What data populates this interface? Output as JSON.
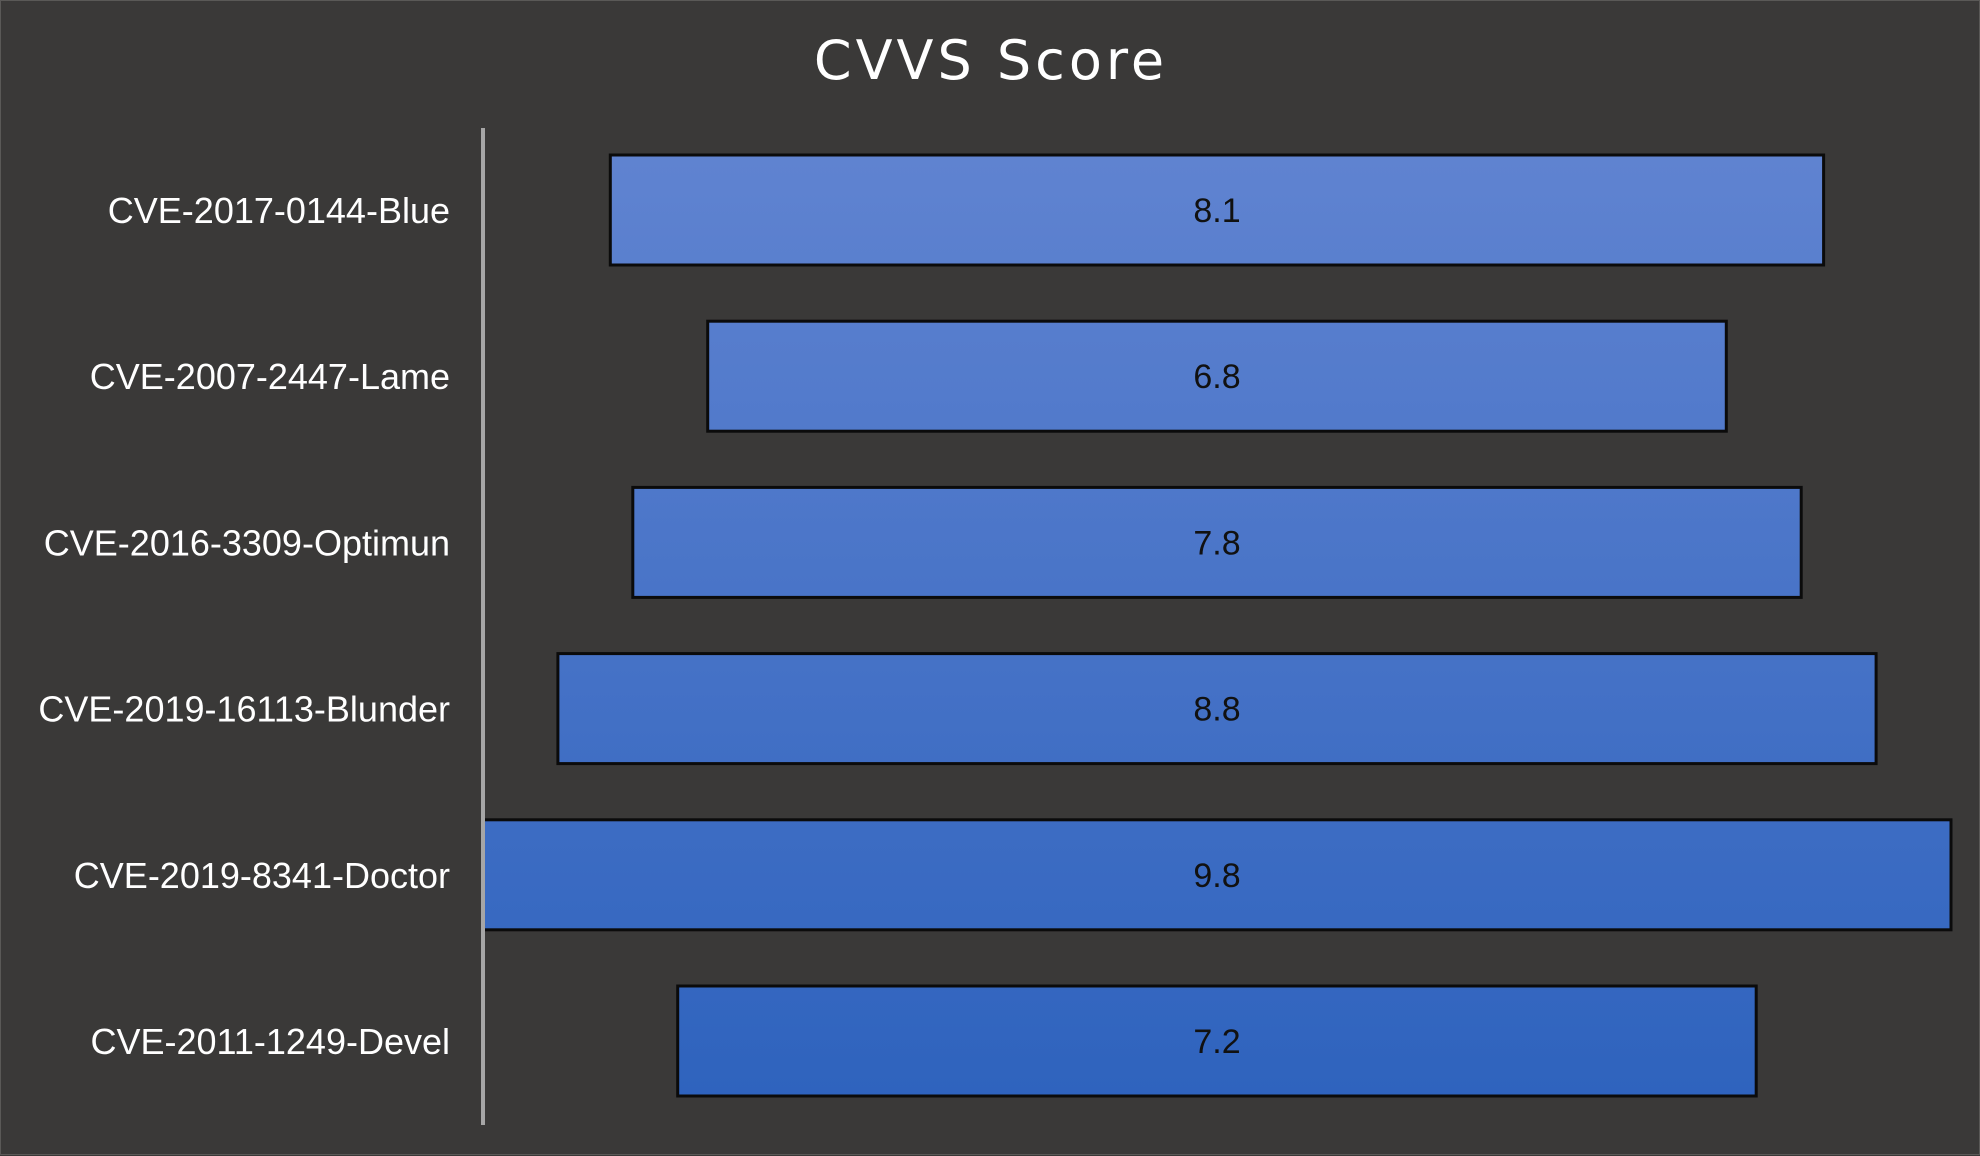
{
  "chart_data": {
    "type": "bar",
    "orientation": "horizontal",
    "title": "CVVS Score",
    "categories": [
      "CVE-2017-0144-Blue",
      "CVE-2007-2447-Lame",
      "CVE-2016-3309-Optimun",
      "CVE-2019-16113-Blunder",
      "CVE-2019-8341-Doctor",
      "CVE-2011-1249-Devel"
    ],
    "values": [
      8.1,
      6.8,
      7.8,
      8.8,
      9.8,
      7.2
    ],
    "data_labels": [
      "8.1",
      "6.8",
      "7.8",
      "8.8",
      "9.8",
      "7.2"
    ],
    "bar_alignment": "centered",
    "grid": false,
    "legend": "none",
    "colors": {
      "background": "#3a3938",
      "bar_top": "#6184d1",
      "bar_bottom": "#2d62bd",
      "bar_border": "#0b0b0b",
      "axis": "#a6a6a6",
      "text": "#ffffff",
      "value_text": "#111111"
    }
  }
}
